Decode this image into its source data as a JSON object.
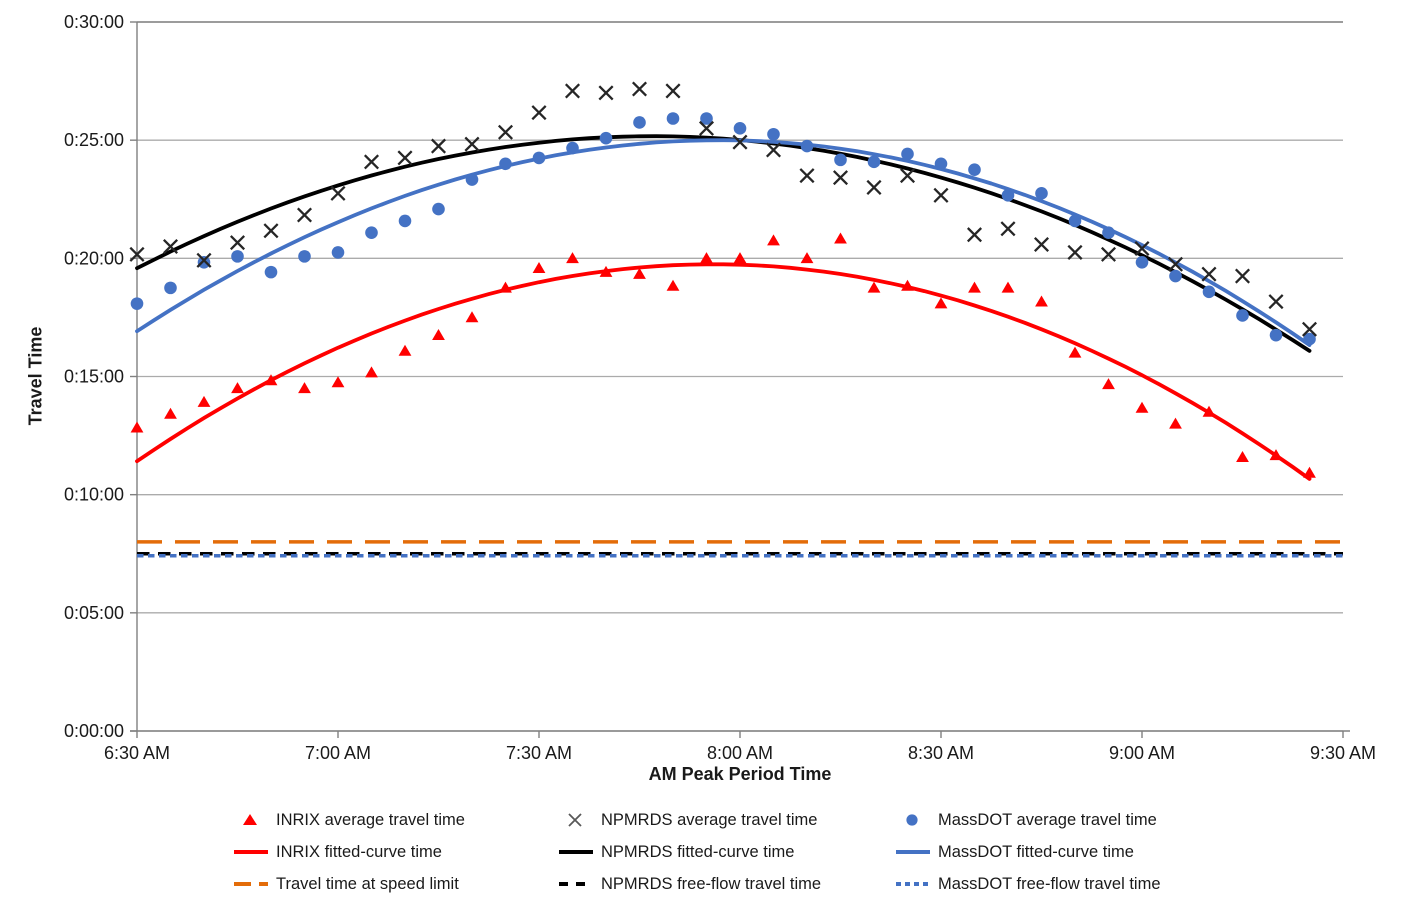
{
  "axes": {
    "x_title": "AM Peak Period Time",
    "y_title": "Travel Time"
  },
  "chart_data": {
    "type": "scatter",
    "title": "",
    "xlabel": "AM Peak Period Time",
    "ylabel": "Travel Time",
    "grid": "horizontal-on",
    "legend_position": "bottom",
    "x_axis": {
      "ticks": [
        "6:30 AM",
        "7:00 AM",
        "7:30 AM",
        "8:00 AM",
        "8:30 AM",
        "9:00 AM",
        "9:30 AM"
      ],
      "min": "6:30 AM",
      "max": "9:30 AM"
    },
    "y_axis": {
      "ticks": [
        "0:00:00",
        "0:05:00",
        "0:10:00",
        "0:15:00",
        "0:20:00",
        "0:25:00",
        "0:30:00"
      ],
      "min": "0:00:00",
      "max": "0:30:00"
    },
    "times": [
      "6:30",
      "6:35",
      "6:40",
      "6:45",
      "6:50",
      "6:55",
      "7:00",
      "7:05",
      "7:10",
      "7:15",
      "7:20",
      "7:25",
      "7:30",
      "7:35",
      "7:40",
      "7:45",
      "7:50",
      "7:55",
      "8:00",
      "8:05",
      "8:10",
      "8:15",
      "8:20",
      "8:25",
      "8:30",
      "8:35",
      "8:40",
      "8:45",
      "8:50",
      "8:55",
      "9:00",
      "9:05",
      "9:10",
      "9:15",
      "9:20",
      "9:25"
    ],
    "series": [
      {
        "name": "INRIX average travel time",
        "kind": "scatter",
        "marker": "triangle",
        "color": "#FF0000",
        "values": [
          "0:12:50",
          "0:13:25",
          "0:13:55",
          "0:14:30",
          "0:14:50",
          "0:14:30",
          "0:14:45",
          "0:15:10",
          "0:16:05",
          "0:16:45",
          "0:17:30",
          "0:18:45",
          "0:19:35",
          "0:20:00",
          "0:19:25",
          "0:19:20",
          "0:18:50",
          "0:20:00",
          "0:20:00",
          "0:20:45",
          "0:20:00",
          "0:20:50",
          "0:18:45",
          "0:18:50",
          "0:18:05",
          "0:18:45",
          "0:18:45",
          "0:18:10",
          "0:16:00",
          "0:14:40",
          "0:13:40",
          "0:13:00",
          "0:13:30",
          "0:11:35",
          "0:11:40",
          "0:10:55"
        ]
      },
      {
        "name": "NPMRDS average travel time",
        "kind": "scatter",
        "marker": "x",
        "color": "#262626",
        "values": [
          "0:20:10",
          "0:20:30",
          "0:19:55",
          "0:20:40",
          "0:21:10",
          "0:21:50",
          "0:22:45",
          "0:24:05",
          "0:24:15",
          "0:24:45",
          "0:24:50",
          "0:25:20",
          "0:26:10",
          "0:27:05",
          "0:27:00",
          "0:27:10",
          "0:27:05",
          "0:25:30",
          "0:24:55",
          "0:24:35",
          "0:23:30",
          "0:23:25",
          "0:23:00",
          "0:23:30",
          "0:22:40",
          "0:21:00",
          "0:21:15",
          "0:20:35",
          "0:20:15",
          "0:20:10",
          "0:20:25",
          "0:19:45",
          "0:19:20",
          "0:19:15",
          "0:18:10",
          "0:17:00"
        ]
      },
      {
        "name": "MassDOT average travel time",
        "kind": "scatter",
        "marker": "circle",
        "color": "#4472C4",
        "values": [
          "0:18:05",
          "0:18:45",
          "0:19:50",
          "0:20:05",
          "0:19:25",
          "0:20:05",
          "0:20:15",
          "0:21:05",
          "0:21:35",
          "0:22:05",
          "0:23:20",
          "0:24:00",
          "0:24:15",
          "0:24:40",
          "0:25:05",
          "0:25:45",
          "0:25:55",
          "0:25:55",
          "0:25:30",
          "0:25:15",
          "0:24:45",
          "0:24:10",
          "0:24:05",
          "0:24:25",
          "0:24:00",
          "0:23:45",
          "0:22:40",
          "0:22:45",
          "0:21:35",
          "0:21:05",
          "0:19:50",
          "0:19:15",
          "0:18:35",
          "0:17:35",
          "0:16:45",
          "0:16:35"
        ]
      },
      {
        "name": "INRIX fitted-curve time",
        "kind": "fitted-curve",
        "color": "#FF0000",
        "start_time": "6:30",
        "start": "0:11:25",
        "peak_time": "7:56",
        "peak": "0:19:45",
        "end_time": "9:25",
        "end": "0:10:40"
      },
      {
        "name": "NPMRDS fitted-curve time",
        "kind": "fitted-curve",
        "color": "#000000",
        "start_time": "6:30",
        "start": "0:19:35",
        "peak_time": "7:47",
        "peak": "0:25:10",
        "end_time": "9:25",
        "end": "0:16:05"
      },
      {
        "name": "MassDOT fitted-curve time",
        "kind": "fitted-curve",
        "color": "#4472C4",
        "start_time": "6:30",
        "start": "0:16:55",
        "peak_time": "7:57",
        "peak": "0:25:00",
        "end_time": "9:25",
        "end": "0:16:20"
      },
      {
        "name": "Travel time at speed limit",
        "kind": "flat-line",
        "dash": "long",
        "color": "#E36C09",
        "value": "0:08:00"
      },
      {
        "name": "NPMRDS free-flow travel time",
        "kind": "flat-line",
        "dash": "dash",
        "color": "#000000",
        "value": "0:07:30"
      },
      {
        "name": "MassDOT free-flow travel time",
        "kind": "flat-line",
        "dash": "dot",
        "color": "#4472C4",
        "value": "0:07:25"
      }
    ]
  },
  "legend": {
    "items": [
      {
        "label": "INRIX average travel time",
        "marker": "triangle-marker",
        "color": "#FF0000"
      },
      {
        "label": "NPMRDS average travel time",
        "marker": "x-marker",
        "color": "#595959"
      },
      {
        "label": "MassDOT average travel time",
        "marker": "circle-marker",
        "color": "#4472C4"
      },
      {
        "label": "INRIX fitted-curve time",
        "marker": "solid-line",
        "color": "#FF0000"
      },
      {
        "label": "NPMRDS fitted-curve time",
        "marker": "solid-line",
        "color": "#000000"
      },
      {
        "label": "MassDOT fitted-curve time",
        "marker": "solid-line",
        "color": "#4472C4"
      },
      {
        "label": "Travel time at speed limit",
        "marker": "long-dash-line",
        "color": "#E36C09"
      },
      {
        "label": "NPMRDS free-flow travel time",
        "marker": "dash-line",
        "color": "#000000"
      },
      {
        "label": "MassDOT free-flow travel time",
        "marker": "dot-line",
        "color": "#4472C4"
      }
    ]
  },
  "colors": {
    "gridline": "#ABABAB",
    "axis": "#808080",
    "tick_text": "#1a1a1a"
  }
}
